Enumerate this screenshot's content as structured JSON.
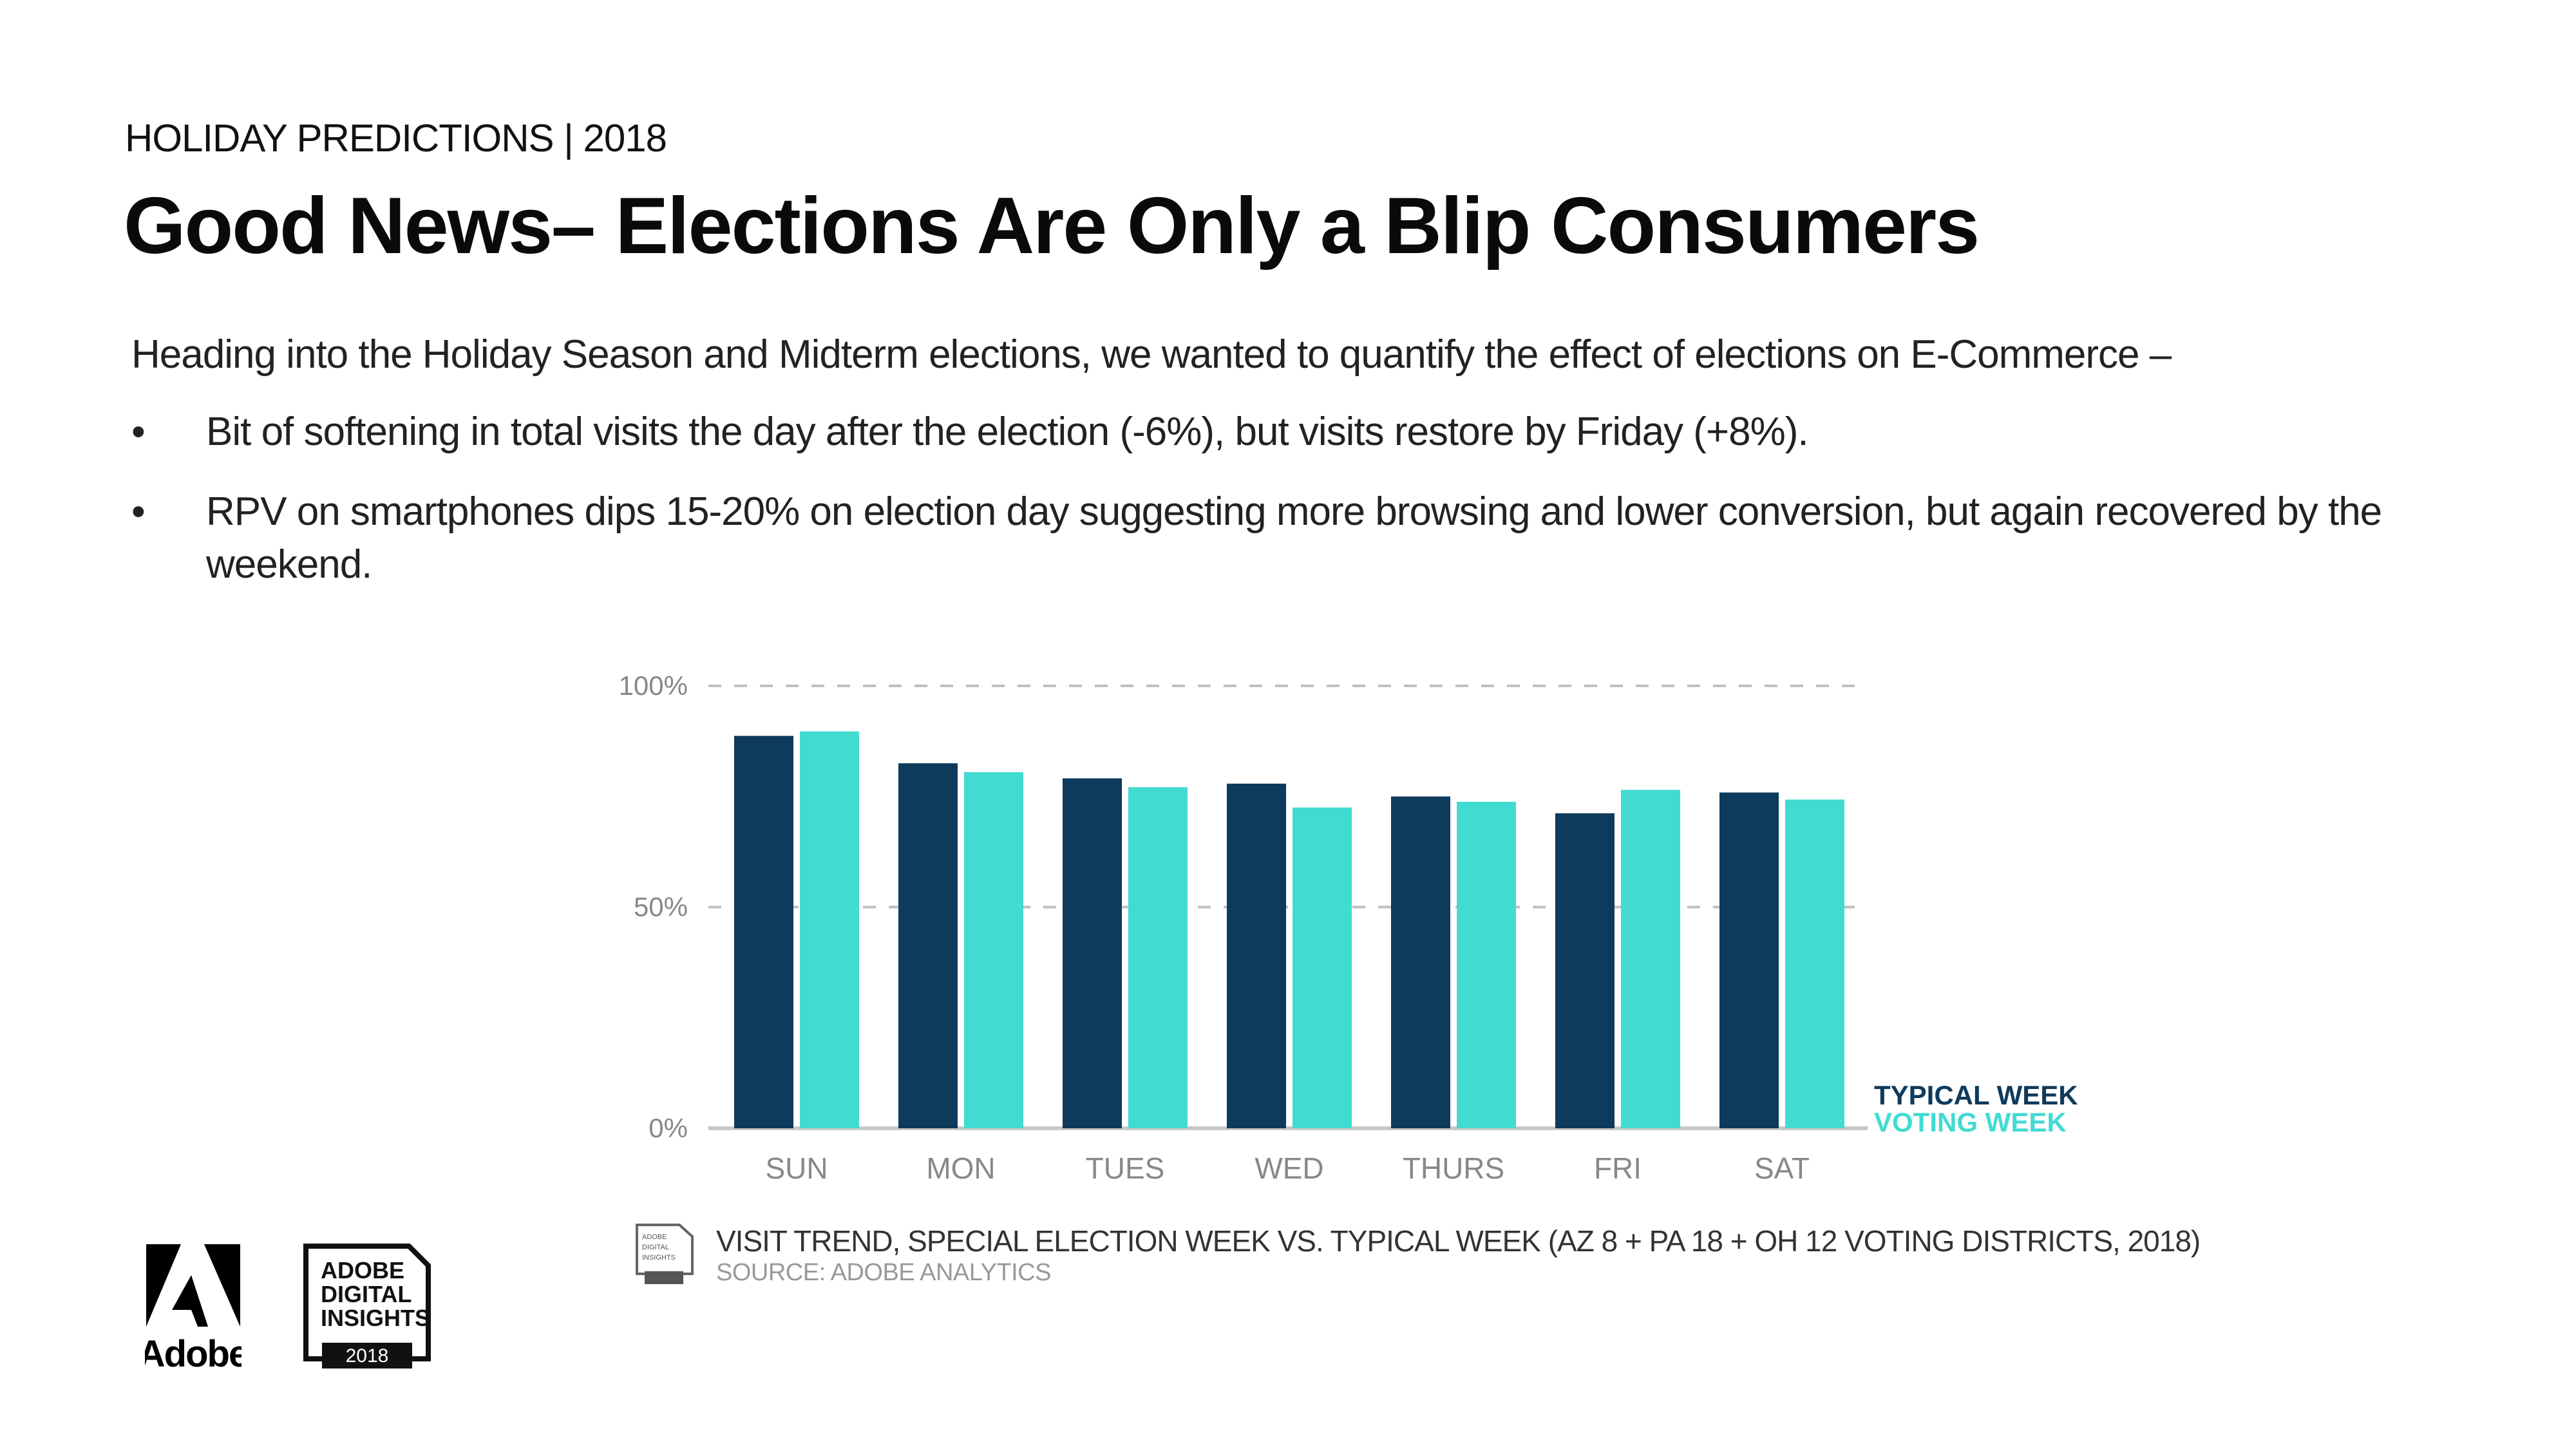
{
  "header": {
    "kicker": "HOLIDAY PREDICTIONS | 2018",
    "title": "Good News– Elections Are Only a Blip Consumers"
  },
  "body": {
    "lead": "Heading into the Holiday Season and Midterm elections, we wanted to quantify the effect of elections on E-Commerce –",
    "bullet_glyph": "•",
    "bullets": [
      "Bit of softening in total visits the day after the election (-6%), but visits restore by Friday (+8%).",
      "RPV on smartphones dips 15-20% on election day suggesting more browsing and lower conversion, but again recovered by the weekend."
    ]
  },
  "colors": {
    "typical_week": "#0e3a5c",
    "voting_week": "#41dbd2",
    "gridline": "#bfbfbf",
    "axis_text": "#888888"
  },
  "chart_data": {
    "type": "bar",
    "title": "VISIT TREND, SPECIAL ELECTION WEEK VS. TYPICAL WEEK",
    "categories": [
      "SUN",
      "MON",
      "TUES",
      "WED",
      "THURS",
      "FRI",
      "SAT"
    ],
    "series": [
      {
        "name": "TYPICAL WEEK",
        "color": "#0e3a5c",
        "values": [
          88.7,
          82.5,
          79.1,
          77.9,
          75.0,
          71.2,
          75.9
        ]
      },
      {
        "name": "VOTING WEEK",
        "color": "#41dbd2",
        "values": [
          89.7,
          80.5,
          77.1,
          72.5,
          73.8,
          76.5,
          74.3
        ]
      }
    ],
    "xlabel": "",
    "ylabel": "",
    "ylim": [
      0,
      100
    ],
    "yticks": [
      0,
      50,
      100
    ],
    "ytick_labels": [
      "0%",
      "50%",
      "100%"
    ],
    "grid": true,
    "legend": "right"
  },
  "caption": {
    "main": "VISIT TREND, SPECIAL ELECTION WEEK VS. TYPICAL WEEK  (AZ 8 + PA 18 + OH 12 VOTING DISTRICTS, 2018)",
    "source": "SOURCE: ADOBE ANALYTICS"
  },
  "logos": {
    "adobe_wordmark": "Adobe",
    "badge_lines": [
      "ADOBE",
      "DIGITAL",
      "INSIGHTS"
    ],
    "badge_year": "2018"
  }
}
